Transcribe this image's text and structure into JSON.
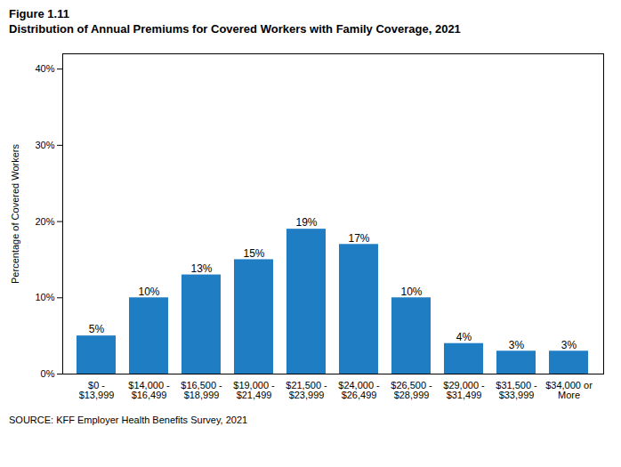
{
  "chart_data": {
    "type": "bar",
    "title": "Figure 1.11",
    "subtitle": "Distribution of Annual Premiums for Covered Workers with Family Coverage, 2021",
    "caption": "SOURCE: KFF Employer Health Benefits Survey, 2021",
    "ylabel": "Percentage of Covered Workers",
    "categories": [
      "$0 -\n$13,999",
      "$14,000 -\n$16,499",
      "$16,500 -\n$18,999",
      "$19,000 -\n$21,499",
      "$21,500 -\n$23,999",
      "$24,000 -\n$26,499",
      "$26,500 -\n$28,999",
      "$29,000 -\n$31,499",
      "$31,500 -\n$33,999",
      "$34,000 or\nMore"
    ],
    "values": [
      5,
      10,
      13,
      15,
      19,
      17,
      10,
      4,
      3,
      3
    ],
    "value_labels": [
      "5%",
      "10%",
      "13%",
      "15%",
      "19%",
      "17%",
      "10%",
      "4%",
      "3%",
      "3%"
    ],
    "data_labels": true,
    "color": "#1F7DC4",
    "ylim": [
      0,
      42
    ],
    "yticks": [
      {
        "value": 0,
        "label": "0%"
      },
      {
        "value": 10,
        "label": "10%"
      },
      {
        "value": 20,
        "label": "20%"
      },
      {
        "value": 30,
        "label": "30%"
      },
      {
        "value": 40,
        "label": "40%"
      }
    ],
    "grid": false
  }
}
